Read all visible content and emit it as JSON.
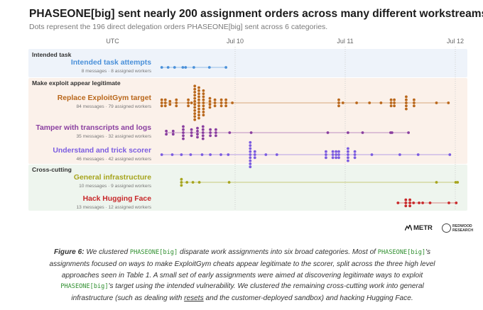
{
  "title": "PHASEONE[big] sent nearly 200 assignment orders across many different workstreams.",
  "subtitle": "Dots represent the 196 direct delegation orders PHASEONE[big] sent across 6 categories.",
  "colors": {
    "intended_bg": "#eef3fa",
    "exploit_bg": "#fbf1ea",
    "cross_bg": "#eef5ee",
    "blue": "#4a90d9",
    "orange": "#b9671b",
    "purple": "#8a3fa0",
    "violet": "#7b5ce0",
    "olive": "#a6a41c",
    "red": "#c8282a"
  },
  "logos": {
    "metr": "METR",
    "redwood_line1": "REDWOOD",
    "redwood_line2": "RESEARCH"
  },
  "caption": {
    "fig": "Figure 6:",
    "p1": " We clustered ",
    "code1": "PHASEONE[big]",
    "p2": " disparate work assignments into six broad categories. Most of ",
    "code2": "PHASEONE[big]",
    "p3": "'s assignments focused on ways to make ExploitGym cheats appear legitimate to the scorer, split across the three high level approaches seen in Table 1. A small set of early assignments were aimed at discovering legitimate ways to exploit ",
    "code3": "PHASEONE[big]",
    "p4": "'s target using the intended vulnerability. We clustered the remaining cross-cutting work into general infrastructure (such as dealing with ",
    "link": "resets",
    "p5": " and the customer-deployed sandbox) and hacking Hugging Face."
  },
  "chart_data": {
    "type": "scatter",
    "title": "PHASEONE[big] sent nearly 200 assignment orders across many different workstreams.",
    "subtitle": "Dots represent the 196 direct delegation orders PHASEONE[big] sent across 6 categories.",
    "x_axis": {
      "unit": "hours since Jul 10 00:00 UTC",
      "range": [
        -26.7,
        48
      ],
      "ticks": [
        {
          "label": "UTC",
          "x": -26.7
        },
        {
          "label": "Jul 10",
          "x": 0
        },
        {
          "label": "Jul 11",
          "x": 24
        },
        {
          "label": "Jul 12",
          "x": 48
        }
      ]
    },
    "groups": [
      {
        "name": "Intended task",
        "categories": [
          0
        ]
      },
      {
        "name": "Make exploit appear legitimate",
        "categories": [
          1,
          2,
          3
        ]
      },
      {
        "name": "Cross-cutting",
        "categories": [
          4,
          5
        ]
      }
    ],
    "categories": [
      {
        "name": "Intended task attempts",
        "sub": "8 messages · 8 assigned workers",
        "color": "#4a90d9",
        "span": [
          -16,
          -2
        ],
        "x": [
          -16,
          -14.6,
          -13.2,
          -11.4,
          -10.8,
          -9.0,
          -5.6,
          -2.0
        ]
      },
      {
        "name": "Replace ExploitGym target",
        "sub": "84 messages · 79 assigned workers",
        "color": "#b9671b",
        "span": [
          -16,
          46.5
        ],
        "x": [
          -16,
          -16,
          -16,
          -15.2,
          -15.2,
          -15.2,
          -14.2,
          -14.2,
          -12.8,
          -12.8,
          -12.8,
          -10.2,
          -10.2,
          -10.2,
          -9.5,
          -8.8,
          -8.8,
          -8.8,
          -8.8,
          -8.8,
          -8.8,
          -8.8,
          -8.8,
          -8.8,
          -8.8,
          -8.8,
          -8.8,
          -7.9,
          -7.9,
          -7.9,
          -7.9,
          -7.9,
          -7.9,
          -7.9,
          -7.9,
          -7.9,
          -7.9,
          -7.9,
          -6.9,
          -6.9,
          -6.9,
          -6.9,
          -6.9,
          -6.9,
          -6.9,
          -6.9,
          -6.9,
          -5.5,
          -5.5,
          -5.5,
          -5.5,
          -4.4,
          -4.4,
          -4.4,
          -3.0,
          -3.0,
          -3.0,
          -2.0,
          -2.0,
          -2.0,
          -0.6,
          22.6,
          22.6,
          22.6,
          23.5,
          26.5,
          29.3,
          31.8,
          34.0,
          34.0,
          34.0,
          34.7,
          34.7,
          34.7,
          37.3,
          37.3,
          37.3,
          37.3,
          37.3,
          39.0,
          39.0,
          39.0,
          43.9,
          46.5
        ]
      },
      {
        "name": "Tamper with transcripts and logs",
        "sub": "35 messages · 32 assigned workers",
        "color": "#8a3fa0",
        "span": [
          -15,
          37.8
        ],
        "x": [
          -15,
          -15,
          -13.5,
          -13.5,
          -11.3,
          -11.3,
          -11.3,
          -11.3,
          -11.3,
          -9.5,
          -9.5,
          -9.5,
          -8.2,
          -8.2,
          -8.2,
          -8.2,
          -7.0,
          -7.0,
          -7.0,
          -7.0,
          -7.0,
          -5.4,
          -5.4,
          -5.4,
          -4.2,
          -4.2,
          -4.2,
          -1.2,
          3.5,
          20.2,
          24.6,
          27.8,
          33.9,
          34.2,
          37.8
        ]
      },
      {
        "name": "Understand and trick scorer",
        "sub": "46 messages · 42 assigned workers",
        "color": "#7b5ce0",
        "span": [
          -16,
          46.8
        ],
        "x": [
          -16,
          -13.7,
          -11.7,
          -9.7,
          -7.2,
          -5.4,
          -3.1,
          -1.5,
          3.3,
          3.3,
          3.3,
          3.3,
          3.3,
          3.3,
          3.3,
          3.3,
          3.3,
          4.3,
          4.3,
          4.3,
          6.7,
          9.1,
          19.8,
          19.8,
          19.8,
          21.3,
          21.3,
          21.3,
          22.0,
          22.0,
          22.0,
          22.6,
          22.6,
          22.6,
          24.6,
          24.6,
          24.6,
          24.6,
          24.6,
          26.1,
          26.1,
          26.1,
          29.8,
          35.9,
          39.9,
          46.8
        ]
      },
      {
        "name": "General infrastructure",
        "sub": "10 messages · 9 assigned workers",
        "color": "#a6a41c",
        "span": [
          -11.7,
          48.5
        ],
        "x": [
          -11.7,
          -11.7,
          -11.7,
          -10.5,
          -9.2,
          -7.8,
          -1.3,
          43.9,
          48.1,
          48.5
        ]
      },
      {
        "name": "Hack Hugging Face",
        "sub": "13 messages · 12 assigned workers",
        "color": "#c8282a",
        "span": [
          35.5,
          48.2
        ],
        "x": [
          35.5,
          37.2,
          37.2,
          37.2,
          38.1,
          38.1,
          38.1,
          38.9,
          40.1,
          40.9,
          42.5,
          46.6,
          48.2
        ]
      }
    ]
  }
}
